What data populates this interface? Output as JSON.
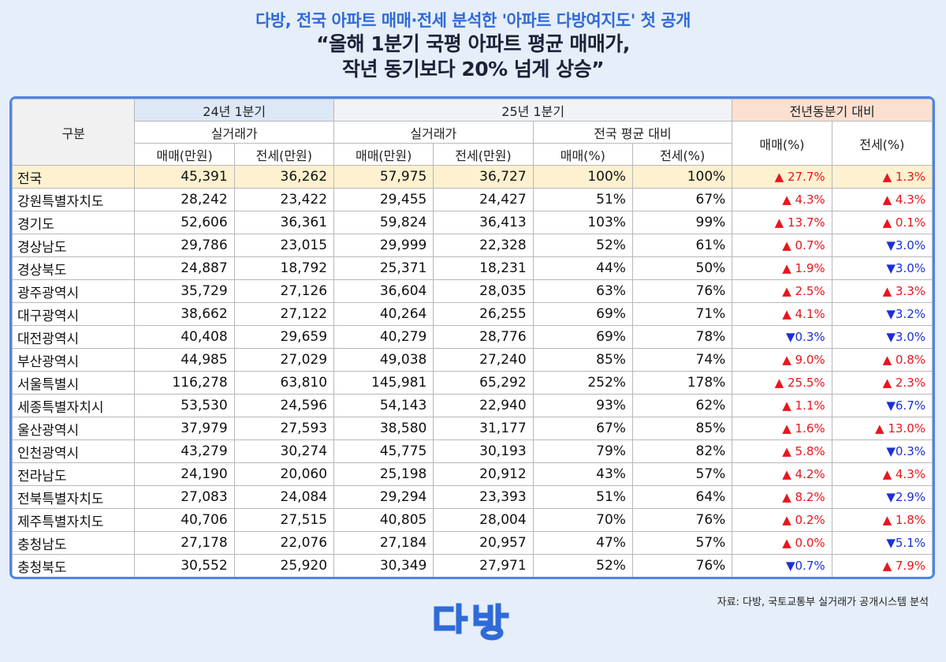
{
  "subtitle": "다방, 전국 아파트 매매·전세 분석한 '아파트 다방여지도' 첫 공개",
  "headline": {
    "line1": "“올해 1분기 국평 아파트 평균 매매가,",
    "line2": "작년 동기보다 20% 넘게 상승”"
  },
  "table": {
    "header": {
      "category": "구분",
      "q24": "24년 1분기",
      "q25": "25년 1분기",
      "yoy": "전년동분기 대비",
      "actual": "실거래가",
      "national_avg": "전국 평균 대비",
      "sale_manwon": "매매(만원)",
      "jeonse_manwon": "전세(만원)",
      "sale_pct": "매매(%)",
      "jeonse_pct": "전세(%)"
    },
    "rows": [
      {
        "region": "전국",
        "s24": "45,391",
        "j24": "36,262",
        "s25": "57,975",
        "j25": "36,727",
        "sn": "100%",
        "jn": "100%",
        "ds": "27.7%",
        "ds_dir": "up",
        "dj": "1.3%",
        "dj_dir": "up"
      },
      {
        "region": "강원특별자치도",
        "s24": "28,242",
        "j24": "23,422",
        "s25": "29,455",
        "j25": "24,427",
        "sn": "51%",
        "jn": "67%",
        "ds": "4.3%",
        "ds_dir": "up",
        "dj": "4.3%",
        "dj_dir": "up"
      },
      {
        "region": "경기도",
        "s24": "52,606",
        "j24": "36,361",
        "s25": "59,824",
        "j25": "36,413",
        "sn": "103%",
        "jn": "99%",
        "ds": "13.7%",
        "ds_dir": "up",
        "dj": "0.1%",
        "dj_dir": "up"
      },
      {
        "region": "경상남도",
        "s24": "29,786",
        "j24": "23,015",
        "s25": "29,999",
        "j25": "22,328",
        "sn": "52%",
        "jn": "61%",
        "ds": "0.7%",
        "ds_dir": "up",
        "dj": "3.0%",
        "dj_dir": "down"
      },
      {
        "region": "경상북도",
        "s24": "24,887",
        "j24": "18,792",
        "s25": "25,371",
        "j25": "18,231",
        "sn": "44%",
        "jn": "50%",
        "ds": "1.9%",
        "ds_dir": "up",
        "dj": "3.0%",
        "dj_dir": "down"
      },
      {
        "region": "광주광역시",
        "s24": "35,729",
        "j24": "27,126",
        "s25": "36,604",
        "j25": "28,035",
        "sn": "63%",
        "jn": "76%",
        "ds": "2.5%",
        "ds_dir": "up",
        "dj": "3.3%",
        "dj_dir": "up"
      },
      {
        "region": "대구광역시",
        "s24": "38,662",
        "j24": "27,122",
        "s25": "40,264",
        "j25": "26,255",
        "sn": "69%",
        "jn": "71%",
        "ds": "4.1%",
        "ds_dir": "up",
        "dj": "3.2%",
        "dj_dir": "down"
      },
      {
        "region": "대전광역시",
        "s24": "40,408",
        "j24": "29,659",
        "s25": "40,279",
        "j25": "28,776",
        "sn": "69%",
        "jn": "78%",
        "ds": "0.3%",
        "ds_dir": "down",
        "dj": "3.0%",
        "dj_dir": "down"
      },
      {
        "region": "부산광역시",
        "s24": "44,985",
        "j24": "27,029",
        "s25": "49,038",
        "j25": "27,240",
        "sn": "85%",
        "jn": "74%",
        "ds": "9.0%",
        "ds_dir": "up",
        "dj": "0.8%",
        "dj_dir": "up"
      },
      {
        "region": "서울특별시",
        "s24": "116,278",
        "j24": "63,810",
        "s25": "145,981",
        "j25": "65,292",
        "sn": "252%",
        "jn": "178%",
        "ds": "25.5%",
        "ds_dir": "up",
        "dj": "2.3%",
        "dj_dir": "up"
      },
      {
        "region": "세종특별자치시",
        "s24": "53,530",
        "j24": "24,596",
        "s25": "54,143",
        "j25": "22,940",
        "sn": "93%",
        "jn": "62%",
        "ds": "1.1%",
        "ds_dir": "up",
        "dj": "6.7%",
        "dj_dir": "down"
      },
      {
        "region": "울산광역시",
        "s24": "37,979",
        "j24": "27,593",
        "s25": "38,580",
        "j25": "31,177",
        "sn": "67%",
        "jn": "85%",
        "ds": "1.6%",
        "ds_dir": "up",
        "dj": "13.0%",
        "dj_dir": "up"
      },
      {
        "region": "인천광역시",
        "s24": "43,279",
        "j24": "30,274",
        "s25": "45,775",
        "j25": "30,193",
        "sn": "79%",
        "jn": "82%",
        "ds": "5.8%",
        "ds_dir": "up",
        "dj": "0.3%",
        "dj_dir": "down"
      },
      {
        "region": "전라남도",
        "s24": "24,190",
        "j24": "20,060",
        "s25": "25,198",
        "j25": "20,912",
        "sn": "43%",
        "jn": "57%",
        "ds": "4.2%",
        "ds_dir": "up",
        "dj": "4.3%",
        "dj_dir": "up"
      },
      {
        "region": "전북특별자치도",
        "s24": "27,083",
        "j24": "24,084",
        "s25": "29,294",
        "j25": "23,393",
        "sn": "51%",
        "jn": "64%",
        "ds": "8.2%",
        "ds_dir": "up",
        "dj": "2.9%",
        "dj_dir": "down"
      },
      {
        "region": "제주특별자치도",
        "s24": "40,706",
        "j24": "27,515",
        "s25": "40,805",
        "j25": "28,004",
        "sn": "70%",
        "jn": "76%",
        "ds": "0.2%",
        "ds_dir": "up",
        "dj": "1.8%",
        "dj_dir": "up"
      },
      {
        "region": "충청남도",
        "s24": "27,178",
        "j24": "22,076",
        "s25": "27,184",
        "j25": "20,957",
        "sn": "47%",
        "jn": "57%",
        "ds": "0.0%",
        "ds_dir": "up",
        "dj": "5.1%",
        "dj_dir": "down"
      },
      {
        "region": "충청북도",
        "s24": "30,552",
        "j24": "25,920",
        "s25": "30,349",
        "j25": "27,971",
        "sn": "52%",
        "jn": "76%",
        "ds": "0.7%",
        "ds_dir": "down",
        "dj": "7.9%",
        "dj_dir": "up"
      }
    ]
  },
  "source": "자료: 다방, 국토교통부 실거래가 공개시스템 분석",
  "logo": {
    "text": "다방",
    "color": "#2f6bd8"
  },
  "colors": {
    "up": "#e8161d",
    "down": "#1a2fd8",
    "accent": "#4a86e8"
  }
}
